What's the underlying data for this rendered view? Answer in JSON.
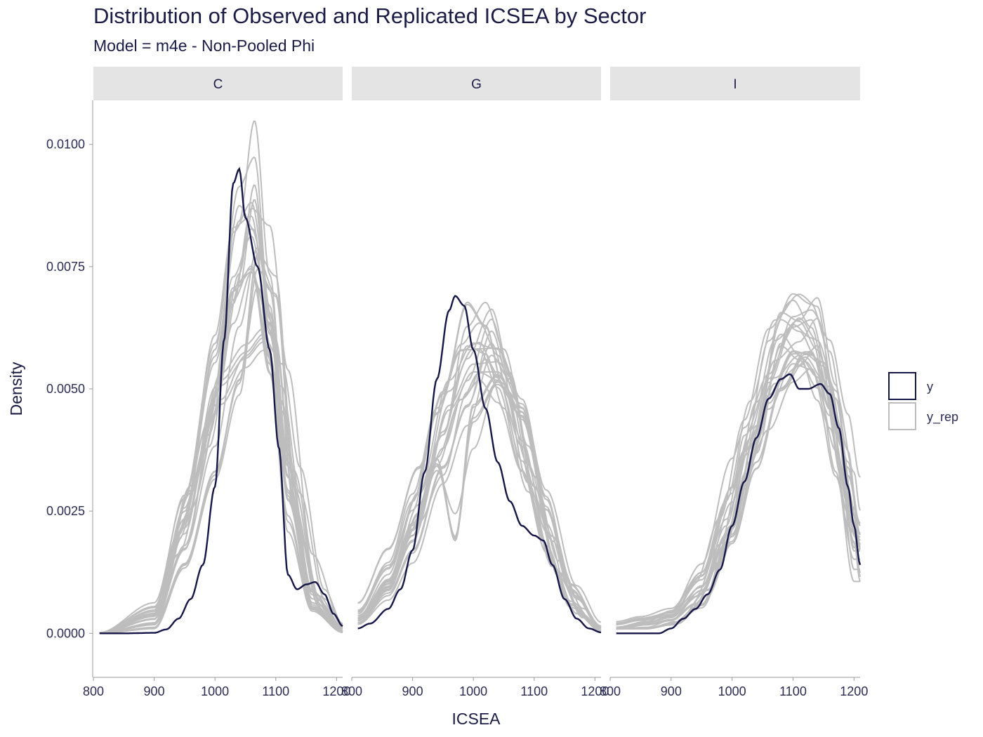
{
  "chart_data": {
    "type": "line",
    "title": "Distribution of Observed and Replicated ICSEA by Sector",
    "subtitle": "Model = m4e - Non-Pooled Phi",
    "xlabel": "ICSEA",
    "ylabel": "Density",
    "xlim": [
      800,
      1210
    ],
    "ylim": [
      -0.0009,
      0.0109
    ],
    "x_ticks": [
      800,
      900,
      1000,
      1100,
      1200
    ],
    "x_tick_labels": [
      "800",
      "900",
      "1000",
      "1100",
      "1200"
    ],
    "y_ticks": [
      0,
      0.0025,
      0.005,
      0.0075,
      0.01
    ],
    "y_tick_labels": [
      "0.0000",
      "0.0025",
      "0.0050",
      "0.0075",
      "0.0100"
    ],
    "grid": false,
    "legend_position": "right",
    "legend": [
      {
        "label": "y",
        "color": "#16164a"
      },
      {
        "label": "y_rep",
        "color": "#bdbdbd"
      }
    ],
    "facets": [
      {
        "label": "C",
        "y": [
          [
            810,
            0
          ],
          [
            850,
            0
          ],
          [
            900,
            1e-05
          ],
          [
            920,
            8e-05
          ],
          [
            940,
            0.0003
          ],
          [
            960,
            0.0007
          ],
          [
            980,
            0.0014
          ],
          [
            1000,
            0.003
          ],
          [
            1015,
            0.006
          ],
          [
            1030,
            0.0092
          ],
          [
            1040,
            0.0095
          ],
          [
            1050,
            0.0085
          ],
          [
            1070,
            0.0075
          ],
          [
            1090,
            0.0058
          ],
          [
            1105,
            0.0038
          ],
          [
            1120,
            0.0012
          ],
          [
            1135,
            0.0009
          ],
          [
            1150,
            0.001
          ],
          [
            1165,
            0.00105
          ],
          [
            1180,
            0.0008
          ],
          [
            1195,
            0.0004
          ],
          [
            1210,
            0.00015
          ]
        ],
        "y_rep_params": {
          "center": 1060,
          "sd": 42,
          "count": 24
        },
        "y_rep": [
          [
            [
              810,
              0
            ],
            [
              900,
              0.0002
            ],
            [
              950,
              0.0018
            ],
            [
              1000,
              0.0045
            ],
            [
              1030,
              0.0071
            ],
            [
              1060,
              0.0085
            ],
            [
              1090,
              0.0073
            ],
            [
              1120,
              0.0038
            ],
            [
              1160,
              0.0009
            ],
            [
              1210,
              5e-05
            ]
          ],
          [
            [
              810,
              0
            ],
            [
              900,
              0.0003
            ],
            [
              950,
              0.0024
            ],
            [
              1000,
              0.0052
            ],
            [
              1040,
              0.0079
            ],
            [
              1065,
              0.0101
            ],
            [
              1090,
              0.0071
            ],
            [
              1120,
              0.0031
            ],
            [
              1160,
              0.0006
            ],
            [
              1210,
              3e-05
            ]
          ],
          [
            [
              810,
              0
            ],
            [
              900,
              0.0002
            ],
            [
              960,
              0.0031
            ],
            [
              1010,
              0.0055
            ],
            [
              1050,
              0.0061
            ],
            [
              1080,
              0.0065
            ],
            [
              1110,
              0.005
            ],
            [
              1140,
              0.0021
            ],
            [
              1180,
              0.0004
            ],
            [
              1210,
              2e-05
            ]
          ],
          [
            [
              810,
              0
            ],
            [
              900,
              0.0001
            ],
            [
              950,
              0.0014
            ],
            [
              1000,
              0.0033
            ],
            [
              1040,
              0.0051
            ],
            [
              1070,
              0.0078
            ],
            [
              1100,
              0.0072
            ],
            [
              1130,
              0.0031
            ],
            [
              1170,
              0.0007
            ],
            [
              1210,
              0.0001
            ]
          ],
          [
            [
              810,
              0
            ],
            [
              900,
              0.0004
            ],
            [
              940,
              0.0021
            ],
            [
              990,
              0.0044
            ],
            [
              1030,
              0.0074
            ],
            [
              1060,
              0.0081
            ],
            [
              1090,
              0.006
            ],
            [
              1120,
              0.0023
            ],
            [
              1160,
              0.0005
            ],
            [
              1210,
              2e-05
            ]
          ]
        ]
      },
      {
        "label": "G",
        "y": [
          [
            810,
            0.0001
          ],
          [
            830,
            0.0002
          ],
          [
            860,
            0.0005
          ],
          [
            880,
            0.0009
          ],
          [
            900,
            0.0017
          ],
          [
            920,
            0.0033
          ],
          [
            940,
            0.0052
          ],
          [
            960,
            0.0066
          ],
          [
            970,
            0.0069
          ],
          [
            985,
            0.0067
          ],
          [
            1000,
            0.0058
          ],
          [
            1020,
            0.0046
          ],
          [
            1040,
            0.0035
          ],
          [
            1060,
            0.0027
          ],
          [
            1080,
            0.0022
          ],
          [
            1100,
            0.002
          ],
          [
            1115,
            0.0019
          ],
          [
            1130,
            0.0014
          ],
          [
            1150,
            0.0007
          ],
          [
            1170,
            0.0003
          ],
          [
            1190,
            0.0001
          ],
          [
            1210,
            2e-05
          ]
        ],
        "y_rep_params": {
          "center": 1010,
          "sd": 65,
          "count": 24
        },
        "y_rep": [
          [
            [
              810,
              0.0003
            ],
            [
              860,
              0.0011
            ],
            [
              900,
              0.0023
            ],
            [
              940,
              0.0041
            ],
            [
              980,
              0.0054
            ],
            [
              1010,
              0.0058
            ],
            [
              1040,
              0.0052
            ],
            [
              1080,
              0.0036
            ],
            [
              1120,
              0.0019
            ],
            [
              1160,
              0.0006
            ],
            [
              1210,
              5e-05
            ]
          ],
          [
            [
              810,
              0.0002
            ],
            [
              860,
              0.0008
            ],
            [
              900,
              0.0017
            ],
            [
              950,
              0.0035
            ],
            [
              990,
              0.0048
            ],
            [
              1030,
              0.0064
            ],
            [
              1060,
              0.0053
            ],
            [
              1100,
              0.0031
            ],
            [
              1140,
              0.0013
            ],
            [
              1180,
              0.0004
            ],
            [
              1210,
              6e-05
            ]
          ],
          [
            [
              810,
              0.0004
            ],
            [
              860,
              0.0013
            ],
            [
              910,
              0.0028
            ],
            [
              950,
              0.0039
            ],
            [
              990,
              0.0061
            ],
            [
              1020,
              0.0063
            ],
            [
              1050,
              0.0051
            ],
            [
              1090,
              0.0033
            ],
            [
              1130,
              0.0016
            ],
            [
              1170,
              0.0005
            ],
            [
              1210,
              3e-05
            ]
          ],
          [
            [
              810,
              0.0003
            ],
            [
              860,
              0.001
            ],
            [
              900,
              0.0021
            ],
            [
              940,
              0.0034
            ],
            [
              970,
              0.0018
            ],
            [
              1000,
              0.0044
            ],
            [
              1040,
              0.005
            ],
            [
              1080,
              0.0043
            ],
            [
              1120,
              0.0024
            ],
            [
              1170,
              0.0007
            ],
            [
              1210,
              0.0001
            ]
          ],
          [
            [
              810,
              0.0002
            ],
            [
              860,
              0.0009
            ],
            [
              910,
              0.0025
            ],
            [
              960,
              0.0047
            ],
            [
              1000,
              0.0055
            ],
            [
              1040,
              0.0055
            ],
            [
              1080,
              0.0045
            ],
            [
              1120,
              0.0026
            ],
            [
              1160,
              0.0009
            ],
            [
              1210,
              0.0001
            ]
          ]
        ]
      },
      {
        "label": "I",
        "y": [
          [
            810,
            0
          ],
          [
            850,
            0
          ],
          [
            880,
            0
          ],
          [
            900,
            0.0001
          ],
          [
            920,
            0.0003
          ],
          [
            940,
            0.0005
          ],
          [
            960,
            0.0008
          ],
          [
            980,
            0.0013
          ],
          [
            1000,
            0.0022
          ],
          [
            1020,
            0.0031
          ],
          [
            1040,
            0.004
          ],
          [
            1060,
            0.0048
          ],
          [
            1080,
            0.0052
          ],
          [
            1095,
            0.0053
          ],
          [
            1110,
            0.005
          ],
          [
            1125,
            0.005
          ],
          [
            1145,
            0.0051
          ],
          [
            1160,
            0.0049
          ],
          [
            1175,
            0.0042
          ],
          [
            1190,
            0.003
          ],
          [
            1200,
            0.0022
          ],
          [
            1210,
            0.0014
          ]
        ],
        "y_rep_params": {
          "center": 1120,
          "sd": 68,
          "count": 24
        },
        "y_rep": [
          [
            [
              810,
              0.0001
            ],
            [
              860,
              0.0002
            ],
            [
              900,
              0.0003
            ],
            [
              940,
              0.0007
            ],
            [
              980,
              0.0017
            ],
            [
              1020,
              0.0035
            ],
            [
              1060,
              0.0056
            ],
            [
              1100,
              0.0065
            ],
            [
              1130,
              0.0063
            ],
            [
              1160,
              0.0054
            ],
            [
              1190,
              0.0035
            ],
            [
              1210,
              0.0017
            ]
          ],
          [
            [
              810,
              0.0002
            ],
            [
              850,
              0.0003
            ],
            [
              900,
              0.0004
            ],
            [
              950,
              0.0009
            ],
            [
              990,
              0.0021
            ],
            [
              1030,
              0.004
            ],
            [
              1070,
              0.0058
            ],
            [
              1110,
              0.0062
            ],
            [
              1140,
              0.0067
            ],
            [
              1170,
              0.005
            ],
            [
              1200,
              0.0022
            ],
            [
              1210,
              0.0012
            ]
          ],
          [
            [
              810,
              0.0001
            ],
            [
              860,
              0.0002
            ],
            [
              900,
              0.0003
            ],
            [
              950,
              0.0011
            ],
            [
              1000,
              0.0025
            ],
            [
              1020,
              0.0037
            ],
            [
              1060,
              0.0047
            ],
            [
              1100,
              0.0058
            ],
            [
              1130,
              0.0061
            ],
            [
              1160,
              0.005
            ],
            [
              1190,
              0.0033
            ],
            [
              1210,
              0.0021
            ]
          ],
          [
            [
              810,
              0.0001
            ],
            [
              860,
              0.0001
            ],
            [
              900,
              0.0002
            ],
            [
              950,
              0.0006
            ],
            [
              1000,
              0.0022
            ],
            [
              1040,
              0.0043
            ],
            [
              1080,
              0.0066
            ],
            [
              1110,
              0.0063
            ],
            [
              1140,
              0.0057
            ],
            [
              1170,
              0.0043
            ],
            [
              1200,
              0.0024
            ],
            [
              1210,
              0.0016
            ]
          ],
          [
            [
              810,
              0.0001
            ],
            [
              860,
              0.0001
            ],
            [
              910,
              0.0002
            ],
            [
              960,
              0.0008
            ],
            [
              1000,
              0.0019
            ],
            [
              1040,
              0.0035
            ],
            [
              1080,
              0.0052
            ],
            [
              1120,
              0.006
            ],
            [
              1150,
              0.0058
            ],
            [
              1180,
              0.0041
            ],
            [
              1200,
              0.0026
            ],
            [
              1210,
              0.0018
            ]
          ]
        ]
      }
    ]
  }
}
